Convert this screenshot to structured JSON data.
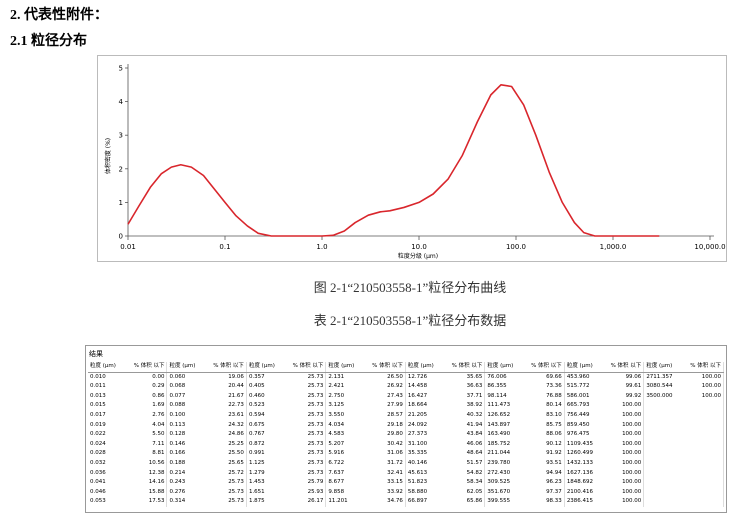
{
  "header": {
    "section": "2.  代表性附件：",
    "subsection": "2.1 粒径分布"
  },
  "chart_data": {
    "type": "line",
    "caption": "图 2-1“210503558-1”粒径分布曲线",
    "x_label": "粒度分级 (μm)",
    "y_label": "体积密度 (%)",
    "log_x": true,
    "xlim": [
      0.01,
      10000
    ],
    "ylim": [
      0,
      5
    ],
    "xticks": [
      0.01,
      0.1,
      {
        "value": 1,
        "label": "1.0"
      },
      {
        "value": 10,
        "label": "10.0"
      },
      {
        "value": 100,
        "label": "100.0"
      },
      {
        "value": 1000,
        "label": "1,000.0"
      },
      {
        "value": 10000,
        "label": "10,000.0"
      }
    ],
    "yticks": [
      0,
      1,
      2,
      3,
      4,
      5
    ],
    "x": [
      0.01,
      0.013,
      0.017,
      0.022,
      0.028,
      0.035,
      0.045,
      0.06,
      0.08,
      0.1,
      0.13,
      0.17,
      0.22,
      0.3,
      0.5,
      1,
      1.3,
      1.7,
      2.2,
      3,
      4,
      5,
      7,
      10,
      14,
      20,
      28,
      40,
      55,
      70,
      90,
      120,
      160,
      220,
      300,
      400,
      500,
      650,
      800,
      1000,
      3000
    ],
    "series": [
      {
        "color": "#d9262c",
        "values": [
          0.35,
          0.9,
          1.45,
          1.85,
          2.05,
          2.12,
          2.05,
          1.8,
          1.35,
          1.0,
          0.6,
          0.3,
          0.08,
          0,
          0,
          0,
          0.02,
          0.15,
          0.4,
          0.62,
          0.72,
          0.75,
          0.85,
          1.0,
          1.25,
          1.7,
          2.4,
          3.4,
          4.2,
          4.5,
          4.45,
          3.9,
          3.0,
          1.9,
          1.0,
          0.4,
          0.1,
          0,
          0,
          0,
          0
        ]
      }
    ]
  },
  "table": {
    "caption": "表 2-1“210503558-1”粒径分布数据",
    "title": "结果",
    "columns": [
      "粒度 (μm)",
      "% 体积 以下"
    ],
    "groups": [
      {
        "sizes": [
          "0.010",
          "0.011",
          "0.013",
          "0.015",
          "0.017",
          "0.019",
          "0.022",
          "0.024",
          "0.028",
          "0.032",
          "0.036",
          "0.041",
          "0.046",
          "0.053"
        ],
        "volumes": [
          "0.00",
          "0.29",
          "0.86",
          "1.69",
          "2.76",
          "4.04",
          "5.50",
          "7.11",
          "8.81",
          "10.56",
          "12.38",
          "14.16",
          "15.88",
          "17.53"
        ]
      },
      {
        "sizes": [
          "0.060",
          "0.068",
          "0.077",
          "0.088",
          "0.100",
          "0.113",
          "0.128",
          "0.146",
          "0.166",
          "0.188",
          "0.214",
          "0.243",
          "0.276",
          "0.314"
        ],
        "volumes": [
          "19.06",
          "20.44",
          "21.67",
          "22.73",
          "23.61",
          "24.32",
          "24.86",
          "25.25",
          "25.50",
          "25.65",
          "25.72",
          "25.73",
          "25.73",
          "25.73"
        ]
      },
      {
        "sizes": [
          "0.357",
          "0.405",
          "0.460",
          "0.523",
          "0.594",
          "0.675",
          "0.767",
          "0.872",
          "0.991",
          "1.125",
          "1.279",
          "1.453",
          "1.651",
          "1.875"
        ],
        "volumes": [
          "25.73",
          "25.73",
          "25.73",
          "25.73",
          "25.73",
          "25.73",
          "25.73",
          "25.73",
          "25.73",
          "25.73",
          "25.73",
          "25.79",
          "25.93",
          "26.17"
        ]
      },
      {
        "sizes": [
          "2.131",
          "2.421",
          "2.750",
          "3.125",
          "3.550",
          "4.034",
          "4.583",
          "5.207",
          "5.916",
          "6.722",
          "7.637",
          "8.677",
          "9.858",
          "11.201"
        ],
        "volumes": [
          "26.50",
          "26.92",
          "27.43",
          "27.99",
          "28.57",
          "29.18",
          "29.80",
          "30.42",
          "31.06",
          "31.72",
          "32.41",
          "33.15",
          "33.92",
          "34.76"
        ]
      },
      {
        "sizes": [
          "12.726",
          "14.458",
          "16.427",
          "18.664",
          "21.205",
          "24.092",
          "27.373",
          "31.100",
          "35.335",
          "40.146",
          "45.613",
          "51.823",
          "58.880",
          "66.897"
        ],
        "volumes": [
          "35.65",
          "36.63",
          "37.71",
          "38.92",
          "40.32",
          "41.94",
          "43.84",
          "46.06",
          "48.64",
          "51.57",
          "54.82",
          "58.34",
          "62.05",
          "65.86"
        ]
      },
      {
        "sizes": [
          "76.006",
          "86.355",
          "98.114",
          "111.473",
          "126.652",
          "143.897",
          "163.490",
          "185.752",
          "211.044",
          "239.780",
          "272.430",
          "309.525",
          "351.670",
          "399.555"
        ],
        "volumes": [
          "69.66",
          "73.36",
          "76.88",
          "80.14",
          "83.10",
          "85.75",
          "88.06",
          "90.12",
          "91.92",
          "93.51",
          "94.94",
          "96.23",
          "97.37",
          "98.33"
        ]
      },
      {
        "sizes": [
          "453.960",
          "515.772",
          "586.001",
          "665.793",
          "756.449",
          "859.450",
          "976.475",
          "1109.435",
          "1260.499",
          "1432.133",
          "1627.136",
          "1848.692",
          "2100.416",
          "2386.415"
        ],
        "volumes": [
          "99.06",
          "99.61",
          "99.92",
          "100.00",
          "100.00",
          "100.00",
          "100.00",
          "100.00",
          "100.00",
          "100.00",
          "100.00",
          "100.00",
          "100.00",
          "100.00"
        ]
      },
      {
        "sizes": [
          "2711.357",
          "3080.544",
          "3500.000"
        ],
        "volumes": [
          "100.00",
          "100.00",
          "100.00"
        ]
      }
    ]
  }
}
